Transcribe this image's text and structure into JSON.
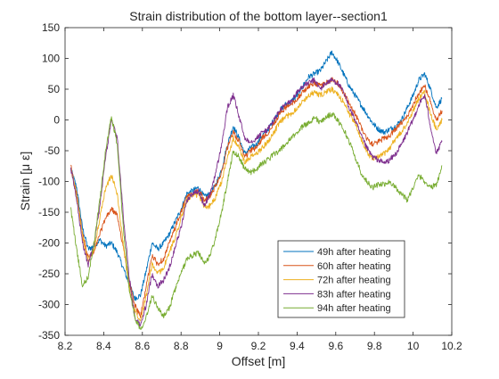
{
  "chart_data": {
    "type": "line",
    "title": "Strain distribution of the bottom layer--section1",
    "xlabel": "Offset [m]",
    "ylabel": "Strain [μ ε]",
    "xlim": [
      8.2,
      10.2
    ],
    "ylim": [
      -350,
      150
    ],
    "xticks": [
      8.2,
      8.4,
      8.6,
      8.8,
      9,
      9.2,
      9.4,
      9.6,
      9.8,
      10,
      10.2
    ],
    "xtick_labels": [
      "8.2",
      "8.4",
      "8.6",
      "8.8",
      "9",
      "9.2",
      "9.4",
      "9.6",
      "9.8",
      "10",
      "10.2"
    ],
    "yticks": [
      -350,
      -300,
      -250,
      -200,
      -150,
      -100,
      -50,
      0,
      50,
      100,
      150
    ],
    "ytick_labels": [
      "-350",
      "-300",
      "-250",
      "-200",
      "-150",
      "-100",
      "-50",
      "0",
      "50",
      "100",
      "150"
    ],
    "grid": false,
    "legend_position": "bottom-right",
    "series": [
      {
        "name": "49h after heating",
        "color": "#0072BD",
        "x": [
          8.23,
          8.26,
          8.29,
          8.32,
          8.35,
          8.38,
          8.41,
          8.44,
          8.47,
          8.5,
          8.53,
          8.56,
          8.59,
          8.62,
          8.65,
          8.68,
          8.71,
          8.74,
          8.77,
          8.8,
          8.83,
          8.86,
          8.89,
          8.92,
          8.95,
          8.98,
          9.01,
          9.04,
          9.07,
          9.1,
          9.13,
          9.16,
          9.19,
          9.22,
          9.25,
          9.28,
          9.31,
          9.34,
          9.37,
          9.4,
          9.43,
          9.46,
          9.49,
          9.52,
          9.55,
          9.58,
          9.61,
          9.64,
          9.67,
          9.7,
          9.73,
          9.76,
          9.79,
          9.82,
          9.85,
          9.88,
          9.91,
          9.94,
          9.97,
          10,
          10.03,
          10.06,
          10.09,
          10.12,
          10.15
        ],
        "y": [
          -80,
          -110,
          -175,
          -210,
          -205,
          -195,
          -205,
          -200,
          -215,
          -240,
          -265,
          -290,
          -285,
          -245,
          -200,
          -210,
          -200,
          -185,
          -165,
          -145,
          -120,
          -115,
          -110,
          -125,
          -120,
          -105,
          -80,
          -40,
          -10,
          -30,
          -55,
          -45,
          -40,
          -25,
          -15,
          0,
          15,
          25,
          30,
          40,
          55,
          70,
          75,
          80,
          95,
          110,
          95,
          75,
          55,
          40,
          25,
          10,
          -5,
          -15,
          -20,
          -15,
          -10,
          0,
          20,
          40,
          65,
          75,
          50,
          20,
          35
        ]
      },
      {
        "name": "60h after heating",
        "color": "#D95319",
        "x": [
          8.23,
          8.26,
          8.29,
          8.32,
          8.35,
          8.38,
          8.41,
          8.44,
          8.47,
          8.5,
          8.53,
          8.56,
          8.59,
          8.62,
          8.65,
          8.68,
          8.71,
          8.74,
          8.77,
          8.8,
          8.83,
          8.86,
          8.89,
          8.92,
          8.95,
          8.98,
          9.01,
          9.04,
          9.07,
          9.1,
          9.13,
          9.16,
          9.19,
          9.22,
          9.25,
          9.28,
          9.31,
          9.34,
          9.37,
          9.4,
          9.43,
          9.46,
          9.49,
          9.52,
          9.55,
          9.58,
          9.61,
          9.64,
          9.67,
          9.7,
          9.73,
          9.76,
          9.79,
          9.82,
          9.85,
          9.88,
          9.91,
          9.94,
          9.97,
          10,
          10.03,
          10.06,
          10.09,
          10.12,
          10.15
        ],
        "y": [
          -75,
          -120,
          -185,
          -225,
          -215,
          -185,
          -160,
          -145,
          -155,
          -205,
          -260,
          -300,
          -320,
          -270,
          -220,
          -235,
          -225,
          -200,
          -175,
          -150,
          -125,
          -120,
          -115,
          -130,
          -125,
          -105,
          -85,
          -45,
          -20,
          -35,
          -60,
          -50,
          -45,
          -30,
          -20,
          -5,
          10,
          20,
          25,
          35,
          45,
          55,
          60,
          55,
          60,
          65,
          60,
          45,
          25,
          10,
          -10,
          -30,
          -40,
          -35,
          -30,
          -25,
          -15,
          -5,
          5,
          25,
          45,
          55,
          30,
          0,
          15
        ]
      },
      {
        "name": "72h after heating",
        "color": "#EDB120",
        "x": [
          8.23,
          8.26,
          8.29,
          8.32,
          8.35,
          8.38,
          8.41,
          8.44,
          8.47,
          8.5,
          8.53,
          8.56,
          8.59,
          8.62,
          8.65,
          8.68,
          8.71,
          8.74,
          8.77,
          8.8,
          8.83,
          8.86,
          8.89,
          8.92,
          8.95,
          8.98,
          9.01,
          9.04,
          9.07,
          9.1,
          9.13,
          9.16,
          9.19,
          9.22,
          9.25,
          9.28,
          9.31,
          9.34,
          9.37,
          9.4,
          9.43,
          9.46,
          9.49,
          9.52,
          9.55,
          9.58,
          9.61,
          9.64,
          9.67,
          9.7,
          9.73,
          9.76,
          9.79,
          9.82,
          9.85,
          9.88,
          9.91,
          9.94,
          9.97,
          10,
          10.03,
          10.06,
          10.09,
          10.12,
          10.15
        ],
        "y": [
          -80,
          -120,
          -190,
          -230,
          -210,
          -160,
          -110,
          -90,
          -120,
          -200,
          -270,
          -310,
          -325,
          -285,
          -235,
          -250,
          -240,
          -215,
          -190,
          -160,
          -130,
          -125,
          -120,
          -140,
          -140,
          -125,
          -100,
          -60,
          -30,
          -45,
          -70,
          -60,
          -55,
          -45,
          -35,
          -20,
          -5,
          5,
          10,
          20,
          30,
          40,
          45,
          40,
          45,
          50,
          40,
          30,
          10,
          -5,
          -30,
          -50,
          -65,
          -60,
          -55,
          -45,
          -30,
          -20,
          -5,
          15,
          35,
          45,
          10,
          -15,
          0
        ]
      },
      {
        "name": "83h after heating",
        "color": "#7E2F8E",
        "x": [
          8.23,
          8.26,
          8.29,
          8.32,
          8.35,
          8.38,
          8.41,
          8.44,
          8.47,
          8.5,
          8.53,
          8.56,
          8.59,
          8.62,
          8.65,
          8.68,
          8.71,
          8.74,
          8.77,
          8.8,
          8.83,
          8.86,
          8.89,
          8.92,
          8.95,
          8.98,
          9.01,
          9.04,
          9.07,
          9.1,
          9.13,
          9.16,
          9.19,
          9.22,
          9.25,
          9.28,
          9.31,
          9.34,
          9.37,
          9.4,
          9.43,
          9.46,
          9.49,
          9.52,
          9.55,
          9.58,
          9.61,
          9.64,
          9.67,
          9.7,
          9.73,
          9.76,
          9.79,
          9.82,
          9.85,
          9.88,
          9.91,
          9.94,
          9.97,
          10,
          10.03,
          10.06,
          10.09,
          10.12,
          10.15
        ],
        "y": [
          -80,
          -130,
          -200,
          -235,
          -200,
          -140,
          -60,
          0,
          -30,
          -150,
          -250,
          -320,
          -335,
          -300,
          -250,
          -270,
          -260,
          -240,
          -205,
          -175,
          -130,
          -120,
          -115,
          -140,
          -120,
          -85,
          -40,
          20,
          40,
          5,
          -30,
          -35,
          -30,
          -20,
          -15,
          0,
          15,
          25,
          30,
          45,
          55,
          60,
          65,
          50,
          60,
          65,
          60,
          45,
          20,
          0,
          -25,
          -45,
          -60,
          -65,
          -70,
          -65,
          -55,
          -40,
          -20,
          0,
          25,
          40,
          -10,
          -55,
          -35
        ]
      },
      {
        "name": "94h after heating",
        "color": "#77AC30",
        "x": [
          8.23,
          8.26,
          8.29,
          8.32,
          8.35,
          8.38,
          8.41,
          8.44,
          8.47,
          8.5,
          8.53,
          8.56,
          8.59,
          8.62,
          8.65,
          8.68,
          8.71,
          8.74,
          8.77,
          8.8,
          8.83,
          8.86,
          8.89,
          8.92,
          8.95,
          8.98,
          9.01,
          9.04,
          9.07,
          9.1,
          9.13,
          9.16,
          9.19,
          9.22,
          9.25,
          9.28,
          9.31,
          9.34,
          9.37,
          9.4,
          9.43,
          9.46,
          9.49,
          9.52,
          9.55,
          9.58,
          9.61,
          9.64,
          9.67,
          9.7,
          9.73,
          9.76,
          9.79,
          9.82,
          9.85,
          9.88,
          9.91,
          9.94,
          9.97,
          10,
          10.03,
          10.06,
          10.09,
          10.12,
          10.15
        ],
        "y": [
          -145,
          -210,
          -270,
          -255,
          -200,
          -130,
          -50,
          5,
          -40,
          -170,
          -270,
          -320,
          -340,
          -320,
          -285,
          -305,
          -320,
          -305,
          -275,
          -250,
          -225,
          -220,
          -215,
          -235,
          -220,
          -190,
          -150,
          -100,
          -50,
          -60,
          -80,
          -85,
          -80,
          -70,
          -65,
          -55,
          -50,
          -40,
          -30,
          -20,
          -10,
          -5,
          5,
          -5,
          5,
          10,
          0,
          -15,
          -35,
          -60,
          -85,
          -100,
          -110,
          -105,
          -105,
          -100,
          -110,
          -120,
          -130,
          -110,
          -90,
          -100,
          -110,
          -105,
          -75
        ]
      }
    ]
  }
}
